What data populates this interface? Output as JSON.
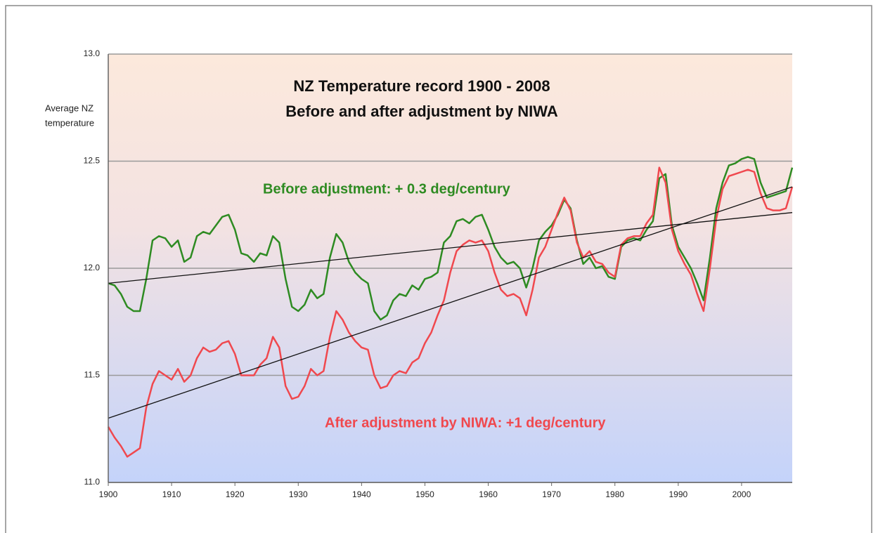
{
  "chart_data": {
    "type": "line",
    "title": [
      "NZ Temperature record 1900 - 2008",
      "Before and after adjustment by NIWA"
    ],
    "ylabel": [
      "Average NZ",
      "temperature"
    ],
    "xlim": [
      1900,
      2008
    ],
    "ylim": [
      11.0,
      13.0
    ],
    "xticks": [
      1900,
      1910,
      1920,
      1930,
      1940,
      1950,
      1960,
      1970,
      1980,
      1990,
      2000
    ],
    "yticks": [
      {
        "value": 11.0,
        "label": "11.0"
      },
      11.5,
      {
        "value": 12.0,
        "label": "12.0"
      },
      12.5,
      {
        "value": 13.0,
        "label": "13.0"
      }
    ],
    "grid": true,
    "x": [
      1900,
      1901,
      1902,
      1903,
      1904,
      1905,
      1906,
      1907,
      1908,
      1909,
      1910,
      1911,
      1912,
      1913,
      1914,
      1915,
      1916,
      1917,
      1918,
      1919,
      1920,
      1921,
      1922,
      1923,
      1924,
      1925,
      1926,
      1927,
      1928,
      1929,
      1930,
      1931,
      1932,
      1933,
      1934,
      1935,
      1936,
      1937,
      1938,
      1939,
      1940,
      1941,
      1942,
      1943,
      1944,
      1945,
      1946,
      1947,
      1948,
      1949,
      1950,
      1951,
      1952,
      1953,
      1954,
      1955,
      1956,
      1957,
      1958,
      1959,
      1960,
      1961,
      1962,
      1963,
      1964,
      1965,
      1966,
      1967,
      1968,
      1969,
      1970,
      1971,
      1972,
      1973,
      1974,
      1975,
      1976,
      1977,
      1978,
      1979,
      1980,
      1981,
      1982,
      1983,
      1984,
      1985,
      1986,
      1987,
      1988,
      1989,
      1990,
      1991,
      1992,
      1993,
      1994,
      1995,
      1996,
      1997,
      1998,
      1999,
      2000,
      2001,
      2002,
      2003,
      2004,
      2005,
      2006,
      2007,
      2008
    ],
    "series": [
      {
        "name": "Before adjustment: + 0.3 deg/century",
        "color": "#2e8b22",
        "values": [
          11.93,
          11.92,
          11.88,
          11.82,
          11.8,
          11.8,
          11.95,
          12.13,
          12.15,
          12.14,
          12.1,
          12.13,
          12.03,
          12.05,
          12.15,
          12.17,
          12.16,
          12.2,
          12.24,
          12.25,
          12.18,
          12.07,
          12.06,
          12.03,
          12.07,
          12.06,
          12.15,
          12.12,
          11.95,
          11.82,
          11.8,
          11.83,
          11.9,
          11.86,
          11.88,
          12.05,
          12.16,
          12.12,
          12.03,
          11.98,
          11.95,
          11.93,
          11.8,
          11.76,
          11.78,
          11.85,
          11.88,
          11.87,
          11.92,
          11.9,
          11.95,
          11.96,
          11.98,
          12.12,
          12.15,
          12.22,
          12.23,
          12.21,
          12.24,
          12.25,
          12.18,
          12.1,
          12.05,
          12.02,
          12.03,
          12.0,
          11.91,
          12.0,
          12.13,
          12.17,
          12.2,
          12.25,
          12.32,
          12.28,
          12.13,
          12.02,
          12.05,
          12.0,
          12.01,
          11.96,
          11.95,
          12.1,
          12.13,
          12.14,
          12.13,
          12.18,
          12.22,
          12.42,
          12.44,
          12.2,
          12.1,
          12.05,
          12.0,
          11.93,
          11.85,
          12.05,
          12.28,
          12.4,
          12.48,
          12.49,
          12.51,
          12.52,
          12.51,
          12.4,
          12.33,
          12.34,
          12.35,
          12.36,
          12.47
        ]
      },
      {
        "name": "After adjustment by NIWA: +1 deg/century",
        "color": "#f0484e",
        "values": [
          11.26,
          11.21,
          11.17,
          11.12,
          11.14,
          11.16,
          11.35,
          11.46,
          11.52,
          11.5,
          11.48,
          11.53,
          11.47,
          11.5,
          11.58,
          11.63,
          11.61,
          11.62,
          11.65,
          11.66,
          11.6,
          11.5,
          11.5,
          11.5,
          11.55,
          11.58,
          11.68,
          11.63,
          11.45,
          11.39,
          11.4,
          11.45,
          11.53,
          11.5,
          11.52,
          11.68,
          11.8,
          11.76,
          11.7,
          11.66,
          11.63,
          11.62,
          11.5,
          11.44,
          11.45,
          11.5,
          11.52,
          11.51,
          11.56,
          11.58,
          11.65,
          11.7,
          11.78,
          11.85,
          11.98,
          12.08,
          12.11,
          12.13,
          12.12,
          12.13,
          12.08,
          11.98,
          11.9,
          11.87,
          11.88,
          11.86,
          11.78,
          11.9,
          12.05,
          12.1,
          12.18,
          12.26,
          12.33,
          12.27,
          12.12,
          12.05,
          12.08,
          12.03,
          12.02,
          11.98,
          11.96,
          12.11,
          12.14,
          12.15,
          12.15,
          12.21,
          12.25,
          12.47,
          12.4,
          12.18,
          12.08,
          12.02,
          11.97,
          11.88,
          11.8,
          12.0,
          12.23,
          12.37,
          12.43,
          12.44,
          12.45,
          12.46,
          12.45,
          12.35,
          12.28,
          12.27,
          12.27,
          12.28,
          12.38
        ]
      }
    ],
    "trendlines": [
      {
        "color": "#111111",
        "x": [
          1900,
          2008
        ],
        "values": [
          11.93,
          12.26
        ]
      },
      {
        "color": "#111111",
        "x": [
          1900,
          2008
        ],
        "values": [
          11.3,
          12.38
        ]
      }
    ]
  }
}
